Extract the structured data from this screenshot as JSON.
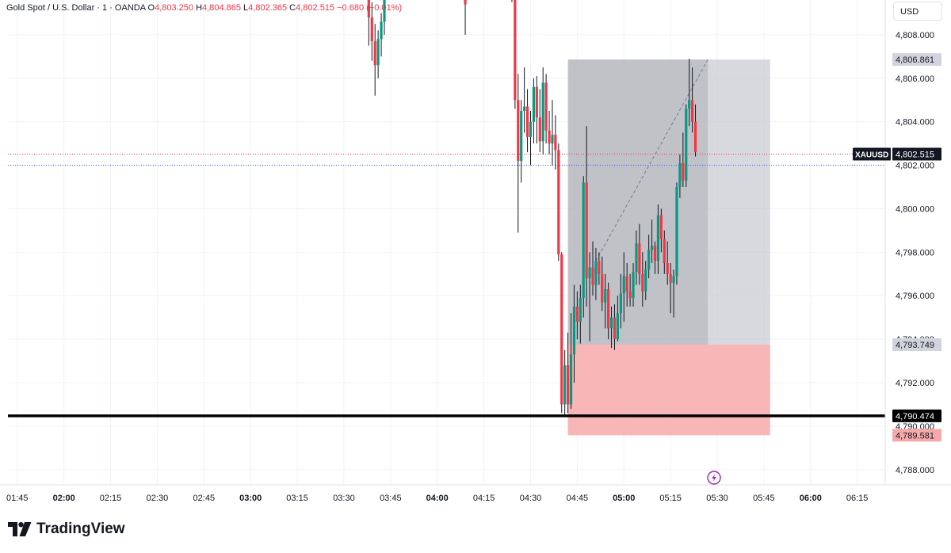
{
  "header": {
    "symbol_title": "Gold Spot / U.S. Dollar · 1 · OANDA",
    "open_label": "O",
    "open_value": "4,803.250",
    "high_label": "H",
    "high_value": "4,804.865",
    "low_label": "L",
    "low_value": "4,802.365",
    "close_label": "C",
    "close_value": "4,802.515",
    "change_value": "−0.680 (−0.01%)"
  },
  "currency_button": {
    "label": "USD"
  },
  "colors": {
    "up": "#089981",
    "down": "#f23645",
    "profit_zone": "#c2c5cc",
    "loss_zone": "#f7a9a9",
    "support_line": "#000000",
    "price_line": "#f23645",
    "bid_line": "#2962ff"
  },
  "logo": {
    "text": "TradingView",
    "icon": "tradingview-logo-icon"
  },
  "event_icon": "lightning-icon",
  "chart_data": {
    "type": "candlestick",
    "symbol": "XAUUSD",
    "ylim": [
      4787.3,
      4809.6
    ],
    "y_ticks": [
      4788,
      4790,
      4792,
      4794,
      4796,
      4798,
      4800,
      4802,
      4804,
      4806,
      4808
    ],
    "y_tick_labels": [
      "4,788.000",
      "4,790.000",
      "4,792.000",
      "4,794.000",
      "4,796.000",
      "4,798.000",
      "4,800.000",
      "4,802.000",
      "4,804.000",
      "4,806.000",
      "4,808.000"
    ],
    "x_start": "01:42",
    "x_end": "06:24",
    "x_ticks": [
      "01:45",
      "02:00",
      "02:15",
      "02:30",
      "02:45",
      "03:00",
      "03:15",
      "03:30",
      "03:45",
      "04:00",
      "04:15",
      "04:30",
      "04:45",
      "05:00",
      "05:15",
      "05:30",
      "05:45",
      "06:00",
      "06:15"
    ],
    "x_ticks_bold": [
      "02:00",
      "03:00",
      "04:00",
      "05:00",
      "06:00"
    ],
    "price_labels": [
      {
        "text": "4,806.861",
        "value": 4806.861,
        "style": "gray"
      },
      {
        "symbol": "XAUUSD",
        "text": "4,802.515",
        "value": 4802.515,
        "style": "dark"
      },
      {
        "text": "4,793.749",
        "value": 4793.749,
        "style": "gray"
      },
      {
        "text": "4,790.474",
        "value": 4790.474,
        "style": "black"
      },
      {
        "text": "4,789.581",
        "value": 4789.581,
        "style": "red"
      }
    ],
    "horizontal_lines": [
      {
        "value": 4790.474,
        "style": "solid-thick",
        "color": "#000000"
      },
      {
        "value": 4802.515,
        "style": "dotted",
        "color": "#f23645"
      },
      {
        "value": 4802.0,
        "style": "dotted",
        "color": "#2962ff"
      }
    ],
    "position_tool": {
      "start_time": "04:42",
      "end_time": "05:47",
      "entry": 4793.749,
      "target": 4806.861,
      "stop": 4789.581,
      "filled_until": "05:27",
      "trend_from": {
        "time": "04:51",
        "price": 4797.6
      },
      "trend_to": {
        "time": "05:27",
        "price": 4806.861
      }
    },
    "candles": [
      {
        "t": "03:38",
        "o": 4809.8,
        "h": 4810.5,
        "l": 4807.5,
        "c": 4808.8
      },
      {
        "t": "03:39",
        "o": 4808.8,
        "h": 4809.5,
        "l": 4806.8,
        "c": 4807.7
      },
      {
        "t": "03:40",
        "o": 4807.7,
        "h": 4808.5,
        "l": 4805.2,
        "c": 4806.6
      },
      {
        "t": "03:41",
        "o": 4806.6,
        "h": 4808.2,
        "l": 4806.0,
        "c": 4807.8
      },
      {
        "t": "03:42",
        "o": 4807.8,
        "h": 4809.0,
        "l": 4807.0,
        "c": 4808.6
      },
      {
        "t": "03:43",
        "o": 4808.6,
        "h": 4810.5,
        "l": 4808.0,
        "c": 4809.8
      },
      {
        "t": "04:09",
        "o": 4809.8,
        "h": 4810.5,
        "l": 4808.0,
        "c": 4809.4
      },
      {
        "t": "04:24",
        "o": 4810.8,
        "h": 4811.5,
        "l": 4809.5,
        "c": 4809.8
      },
      {
        "t": "04:25",
        "o": 4809.8,
        "h": 4810.0,
        "l": 4804.6,
        "c": 4805.0
      },
      {
        "t": "04:26",
        "o": 4805.0,
        "h": 4806.2,
        "l": 4798.9,
        "c": 4802.2
      },
      {
        "t": "04:27",
        "o": 4802.2,
        "h": 4805.0,
        "l": 4801.2,
        "c": 4804.5
      },
      {
        "t": "04:28",
        "o": 4804.5,
        "h": 4806.5,
        "l": 4803.5,
        "c": 4804.7
      },
      {
        "t": "04:29",
        "o": 4804.7,
        "h": 4805.5,
        "l": 4802.6,
        "c": 4803.3
      },
      {
        "t": "04:30",
        "o": 4803.3,
        "h": 4804.5,
        "l": 4802.0,
        "c": 4804.0
      },
      {
        "t": "04:31",
        "o": 4804.0,
        "h": 4806.0,
        "l": 4803.0,
        "c": 4805.6
      },
      {
        "t": "04:32",
        "o": 4805.6,
        "h": 4806.1,
        "l": 4803.0,
        "c": 4804.2
      },
      {
        "t": "04:33",
        "o": 4804.2,
        "h": 4805.5,
        "l": 4802.6,
        "c": 4803.1
      },
      {
        "t": "04:34",
        "o": 4803.1,
        "h": 4806.5,
        "l": 4802.5,
        "c": 4805.8
      },
      {
        "t": "04:35",
        "o": 4805.8,
        "h": 4806.2,
        "l": 4803.0,
        "c": 4803.6
      },
      {
        "t": "04:36",
        "o": 4803.6,
        "h": 4804.5,
        "l": 4802.5,
        "c": 4803.0
      },
      {
        "t": "04:37",
        "o": 4803.0,
        "h": 4805.0,
        "l": 4802.0,
        "c": 4803.4
      },
      {
        "t": "04:38",
        "o": 4803.4,
        "h": 4804.3,
        "l": 4801.8,
        "c": 4802.7
      },
      {
        "t": "04:39",
        "o": 4802.7,
        "h": 4803.0,
        "l": 4797.6,
        "c": 4797.9
      },
      {
        "t": "04:40",
        "o": 4797.9,
        "h": 4798.0,
        "l": 4790.6,
        "c": 4791.0
      },
      {
        "t": "04:41",
        "o": 4791.0,
        "h": 4793.5,
        "l": 4790.5,
        "c": 4792.8
      },
      {
        "t": "04:42",
        "o": 4792.8,
        "h": 4794.3,
        "l": 4790.6,
        "c": 4791.0
      },
      {
        "t": "04:43",
        "o": 4791.0,
        "h": 4795.2,
        "l": 4790.8,
        "c": 4793.3
      },
      {
        "t": "04:44",
        "o": 4793.3,
        "h": 4796.5,
        "l": 4792.0,
        "c": 4795.5
      },
      {
        "t": "04:45",
        "o": 4795.5,
        "h": 4796.2,
        "l": 4794.0,
        "c": 4794.8
      },
      {
        "t": "04:46",
        "o": 4794.8,
        "h": 4796.5,
        "l": 4793.8,
        "c": 4795.9
      },
      {
        "t": "04:47",
        "o": 4795.9,
        "h": 4801.5,
        "l": 4795.0,
        "c": 4801.2
      },
      {
        "t": "04:48",
        "o": 4801.2,
        "h": 4803.8,
        "l": 4795.5,
        "c": 4796.8
      },
      {
        "t": "04:49",
        "o": 4796.8,
        "h": 4798.0,
        "l": 4793.9,
        "c": 4797.3
      },
      {
        "t": "04:50",
        "o": 4797.3,
        "h": 4798.5,
        "l": 4796.0,
        "c": 4796.5
      },
      {
        "t": "04:51",
        "o": 4796.5,
        "h": 4798.2,
        "l": 4795.8,
        "c": 4797.6
      },
      {
        "t": "04:52",
        "o": 4797.6,
        "h": 4798.0,
        "l": 4796.5,
        "c": 4797.0
      },
      {
        "t": "04:53",
        "o": 4797.0,
        "h": 4797.8,
        "l": 4795.3,
        "c": 4795.7
      },
      {
        "t": "04:54",
        "o": 4795.7,
        "h": 4797.0,
        "l": 4794.5,
        "c": 4796.3
      },
      {
        "t": "04:55",
        "o": 4796.3,
        "h": 4796.6,
        "l": 4794.0,
        "c": 4794.5
      },
      {
        "t": "04:56",
        "o": 4794.5,
        "h": 4795.5,
        "l": 4793.6,
        "c": 4795.0
      },
      {
        "t": "04:57",
        "o": 4795.0,
        "h": 4795.6,
        "l": 4793.5,
        "c": 4794.0
      },
      {
        "t": "04:58",
        "o": 4794.0,
        "h": 4796.0,
        "l": 4793.9,
        "c": 4795.2
      },
      {
        "t": "04:59",
        "o": 4795.2,
        "h": 4797.0,
        "l": 4794.5,
        "c": 4796.1
      },
      {
        "t": "05:00",
        "o": 4796.1,
        "h": 4798.0,
        "l": 4794.8,
        "c": 4796.9
      },
      {
        "t": "05:01",
        "o": 4796.9,
        "h": 4797.5,
        "l": 4795.5,
        "c": 4796.2
      },
      {
        "t": "05:02",
        "o": 4796.2,
        "h": 4797.0,
        "l": 4795.5,
        "c": 4795.9
      },
      {
        "t": "05:03",
        "o": 4795.9,
        "h": 4797.5,
        "l": 4795.5,
        "c": 4797.1
      },
      {
        "t": "05:04",
        "o": 4797.1,
        "h": 4799.0,
        "l": 4796.5,
        "c": 4798.4
      },
      {
        "t": "05:05",
        "o": 4798.4,
        "h": 4799.3,
        "l": 4796.5,
        "c": 4797.0
      },
      {
        "t": "05:06",
        "o": 4797.0,
        "h": 4798.0,
        "l": 4795.5,
        "c": 4796.2
      },
      {
        "t": "05:07",
        "o": 4796.2,
        "h": 4797.6,
        "l": 4795.8,
        "c": 4797.2
      },
      {
        "t": "05:08",
        "o": 4797.2,
        "h": 4798.8,
        "l": 4796.8,
        "c": 4798.1
      },
      {
        "t": "05:09",
        "o": 4798.1,
        "h": 4799.5,
        "l": 4797.5,
        "c": 4798.3
      },
      {
        "t": "05:10",
        "o": 4798.3,
        "h": 4798.5,
        "l": 4797.0,
        "c": 4797.6
      },
      {
        "t": "05:11",
        "o": 4797.6,
        "h": 4800.2,
        "l": 4797.0,
        "c": 4799.7
      },
      {
        "t": "05:12",
        "o": 4799.7,
        "h": 4800.0,
        "l": 4798.0,
        "c": 4798.6
      },
      {
        "t": "05:13",
        "o": 4798.6,
        "h": 4799.0,
        "l": 4797.0,
        "c": 4797.5
      },
      {
        "t": "05:14",
        "o": 4797.5,
        "h": 4798.5,
        "l": 4796.5,
        "c": 4797.0
      },
      {
        "t": "05:15",
        "o": 4797.0,
        "h": 4797.5,
        "l": 4795.2,
        "c": 4796.6
      },
      {
        "t": "05:16",
        "o": 4796.6,
        "h": 4797.2,
        "l": 4795.0,
        "c": 4796.9
      },
      {
        "t": "05:17",
        "o": 4796.9,
        "h": 4801.2,
        "l": 4796.5,
        "c": 4801.0
      },
      {
        "t": "05:18",
        "o": 4801.0,
        "h": 4802.5,
        "l": 4800.5,
        "c": 4802.1
      },
      {
        "t": "05:19",
        "o": 4802.1,
        "h": 4803.5,
        "l": 4801.0,
        "c": 4801.3
      },
      {
        "t": "05:20",
        "o": 4801.3,
        "h": 4804.8,
        "l": 4801.0,
        "c": 4804.6
      },
      {
        "t": "05:21",
        "o": 4804.6,
        "h": 4806.9,
        "l": 4803.8,
        "c": 4805.0
      },
      {
        "t": "05:22",
        "o": 4805.0,
        "h": 4806.5,
        "l": 4803.5,
        "c": 4804.0
      },
      {
        "t": "05:23",
        "o": 4804.0,
        "h": 4804.8,
        "l": 4802.4,
        "c": 4802.6
      }
    ]
  }
}
